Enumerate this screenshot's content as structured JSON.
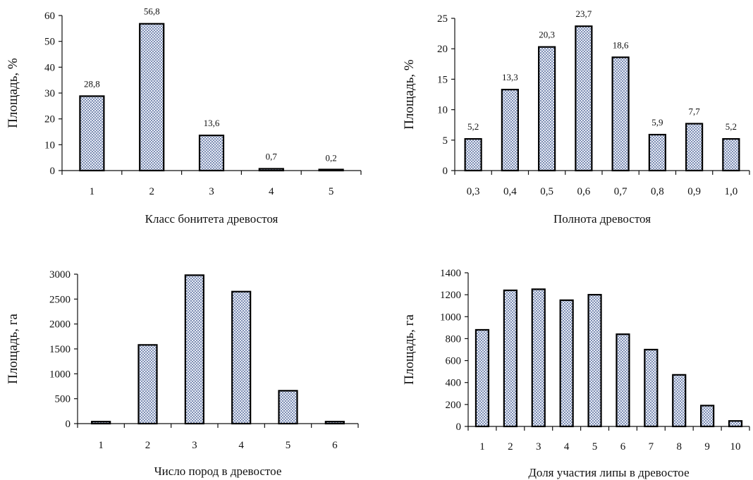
{
  "chart_data": [
    {
      "type": "bar",
      "categories": [
        "1",
        "2",
        "3",
        "4",
        "5"
      ],
      "values": [
        28.8,
        56.8,
        13.6,
        0.7,
        0.2
      ],
      "data_labels": [
        "28,8",
        "56,8",
        "13,6",
        "0,7",
        "0,2"
      ],
      "yticks": [
        "0",
        "10",
        "20",
        "30",
        "40",
        "50",
        "60"
      ],
      "ylim": [
        0,
        60
      ],
      "xlabel": "Класс  бонитета  древостоя",
      "ylabel": "Площадь, %"
    },
    {
      "type": "bar",
      "categories": [
        "0,3",
        "0,4",
        "0,5",
        "0,6",
        "0,7",
        "0,8",
        "0,9",
        "1,0"
      ],
      "values": [
        5.2,
        13.3,
        20.3,
        23.7,
        18.6,
        5.9,
        7.7,
        5.2
      ],
      "data_labels": [
        "5,2",
        "13,3",
        "20,3",
        "23,7",
        "18,6",
        "5,9",
        "7,7",
        "5,2"
      ],
      "yticks": [
        "0",
        "5",
        "10",
        "15",
        "20",
        "25"
      ],
      "ylim": [
        0,
        25
      ],
      "xlabel": "Полнота  древостоя",
      "ylabel": "Площадь, %"
    },
    {
      "type": "bar",
      "categories": [
        "1",
        "2",
        "3",
        "4",
        "5",
        "6"
      ],
      "values": [
        40,
        1580,
        2980,
        2650,
        660,
        40
      ],
      "yticks": [
        "0",
        "500",
        "1000",
        "1500",
        "2000",
        "2500",
        "3000"
      ],
      "ylim": [
        0,
        3000
      ],
      "xlabel": "Число  пород  в древостое",
      "ylabel": "Площадь, га"
    },
    {
      "type": "bar",
      "categories": [
        "1",
        "2",
        "3",
        "4",
        "5",
        "6",
        "7",
        "8",
        "9",
        "10"
      ],
      "values": [
        880,
        1240,
        1250,
        1150,
        1200,
        840,
        700,
        470,
        190,
        50
      ],
      "yticks": [
        "0",
        "200",
        "400",
        "600",
        "800",
        "1000",
        "1200",
        "1400"
      ],
      "ylim": [
        0,
        1400
      ],
      "xlabel": "Доля участия липы в древостое",
      "ylabel": "Площадь, га"
    }
  ],
  "colors": {
    "bar_fill": "#b4bed6",
    "bar_stroke": "#000000",
    "text": "#111111"
  }
}
